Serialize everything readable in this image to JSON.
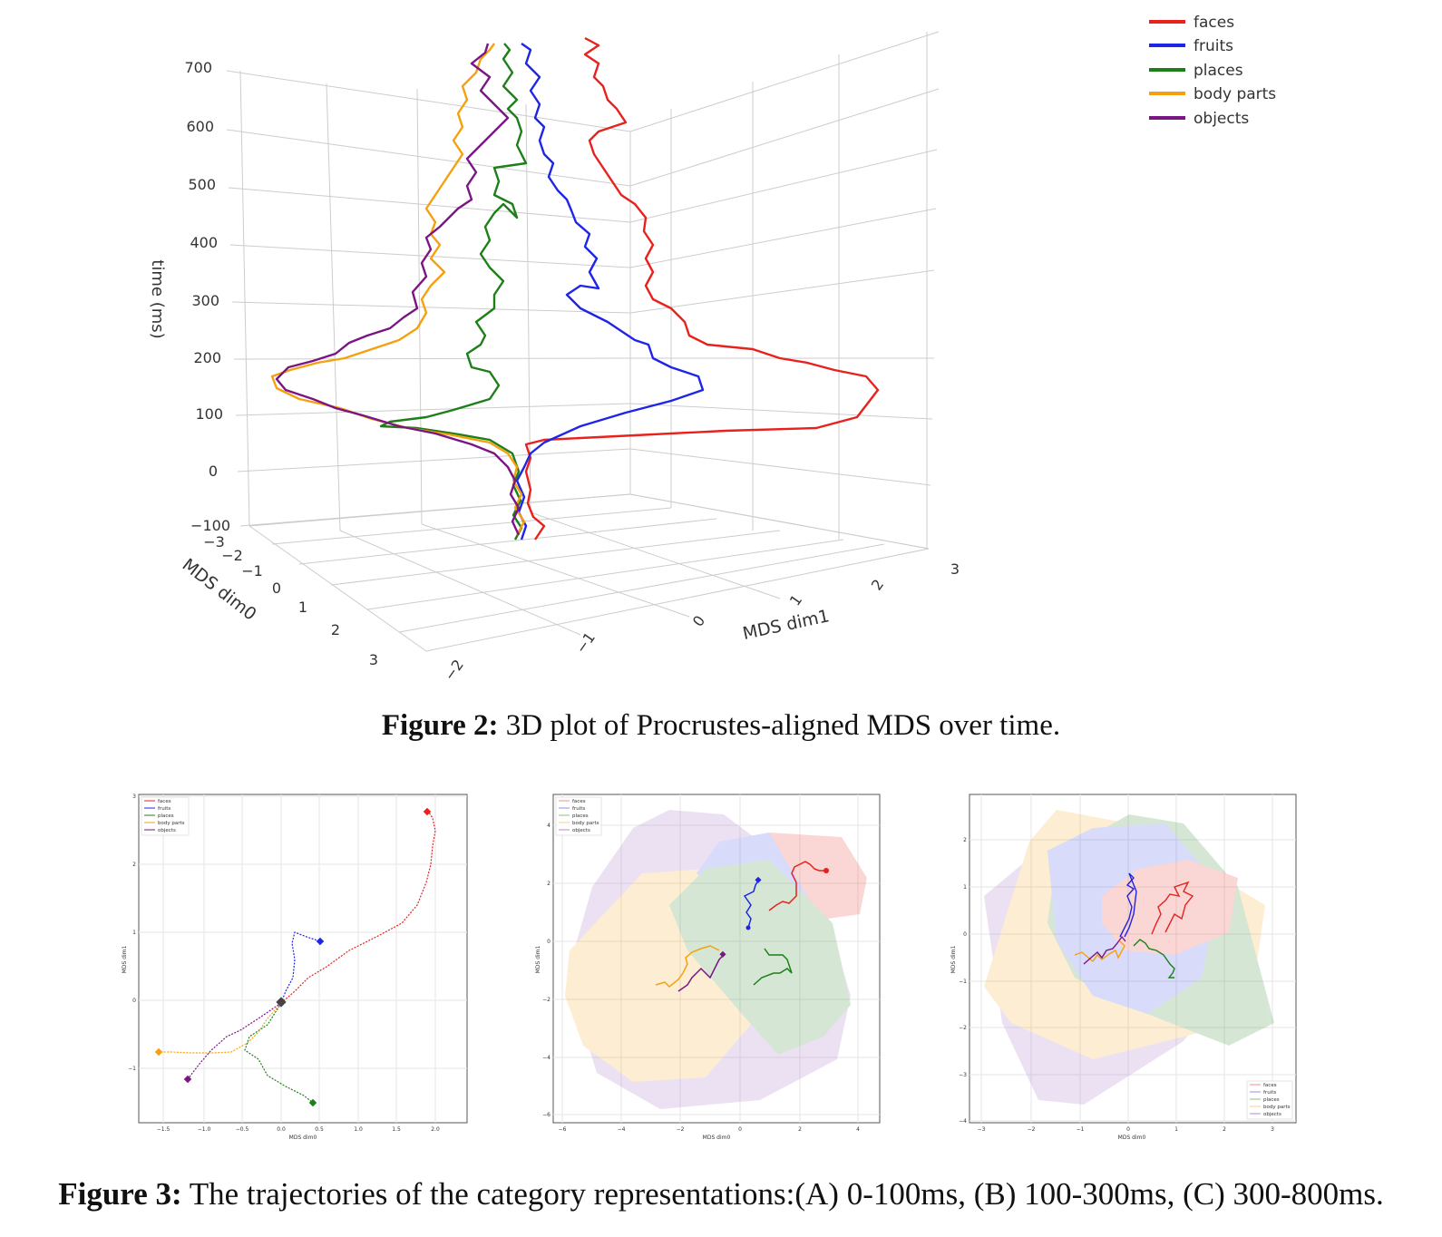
{
  "figure2": {
    "caption_label": "Figure 2:",
    "caption_text": " 3D plot of Procrustes-aligned MDS over time.",
    "zlabel": "time (ms)",
    "xlabel": "MDS dim0",
    "ylabel": "MDS dim1",
    "z_ticks": [
      "700",
      "600",
      "500",
      "400",
      "300",
      "200",
      "100",
      "0",
      "−100"
    ],
    "x_ticks": [
      "−3",
      "−2",
      "−1",
      "0",
      "1",
      "2",
      "3"
    ],
    "y_ticks": [
      "−2",
      "−1",
      "0",
      "1",
      "2",
      "3"
    ],
    "legend": [
      {
        "label": "faces",
        "color": "#e8211d"
      },
      {
        "label": "fruits",
        "color": "#1f25e6"
      },
      {
        "label": "places",
        "color": "#1d7f18"
      },
      {
        "label": "body parts",
        "color": "#f5a10f"
      },
      {
        "label": "objects",
        "color": "#7a1584"
      }
    ]
  },
  "figure3": {
    "caption_label": "Figure 3:",
    "caption_text": " The trajectories of the category representations:(A) 0-100ms, (B) 100-300ms, (C) 300-800ms.",
    "legend": [
      "faces",
      "fruits",
      "places",
      "body parts",
      "objects"
    ],
    "panels": [
      {
        "xlabel": "MDS dim0",
        "ylabel": "MDS dim1",
        "x_ticks": [
          "−1.5",
          "−1.0",
          "−0.5",
          "0.0",
          "0.5",
          "1.0",
          "1.5",
          "2.0"
        ],
        "y_ticks": [
          "3",
          "2",
          "1",
          "0",
          "−1"
        ]
      },
      {
        "xlabel": "MDS dim0",
        "ylabel": "MDS dim1",
        "x_ticks": [
          "−6",
          "−4",
          "−2",
          "0",
          "2",
          "4"
        ],
        "y_ticks": [
          "4",
          "2",
          "0",
          "−2",
          "−4",
          "−6"
        ]
      },
      {
        "xlabel": "MDS dim0",
        "ylabel": "MDS dim1",
        "x_ticks": [
          "−3",
          "−2",
          "−1",
          "0",
          "1",
          "2",
          "3"
        ],
        "y_ticks": [
          "2",
          "1",
          "0",
          "−1",
          "−2",
          "−3",
          "−4"
        ]
      }
    ]
  }
}
